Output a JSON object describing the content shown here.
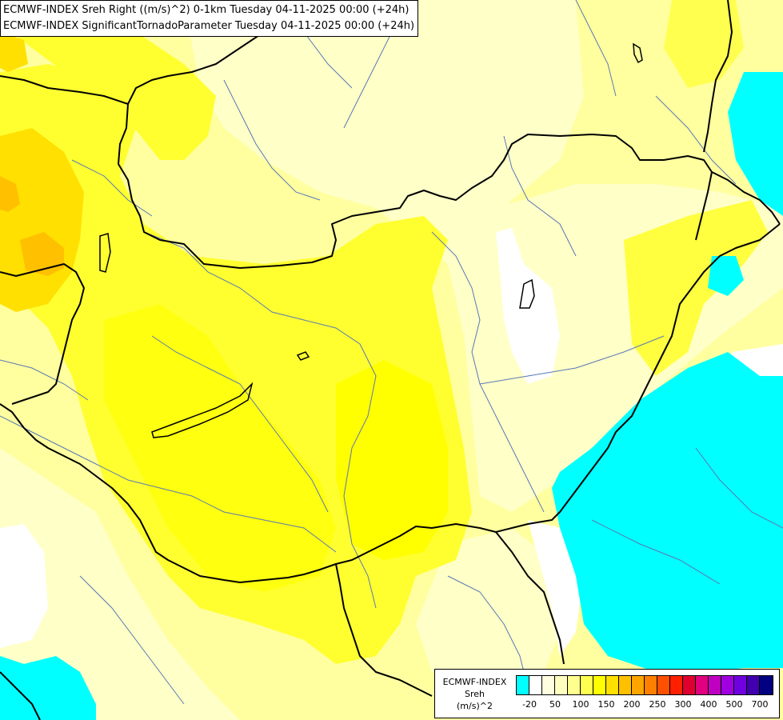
{
  "title_lines": [
    "ECMWF-INDEX Sreh Right ((m/s)^2) 0-1km Tuesday 04-11-2025 00:00 (+24h)",
    "ECMWF-INDEX SignificantTornadoParameter Tuesday 04-11-2025 00:00 (+24h)"
  ],
  "legend": {
    "title_line1": "ECMWF-INDEX",
    "title_line2": "Sreh",
    "title_line3": "(m/s)^2",
    "colors": [
      "#00ffff",
      "#ffffff",
      "#ffffe0",
      "#ffffc0",
      "#ffff90",
      "#ffff50",
      "#ffff00",
      "#ffe000",
      "#ffc000",
      "#ffa500",
      "#ff8000",
      "#ff5000",
      "#ff2000",
      "#e00030",
      "#e00080",
      "#c000c0",
      "#a000e0",
      "#7000e0",
      "#4000b0",
      "#000080"
    ],
    "ticks": [
      "-20",
      "50",
      "100",
      "150",
      "200",
      "250",
      "300",
      "400",
      "500",
      "700"
    ]
  },
  "colors": {
    "cyan": "#00ffff",
    "white": "#ffffff",
    "pale_yellow": "#ffffc0",
    "light_yellow": "#ffff90",
    "yellow": "#ffff00",
    "mid_yellow": "#ffff40",
    "gold": "#ffe000",
    "orange": "#ffc000",
    "border": "#000000",
    "river": "#5a78b4"
  }
}
